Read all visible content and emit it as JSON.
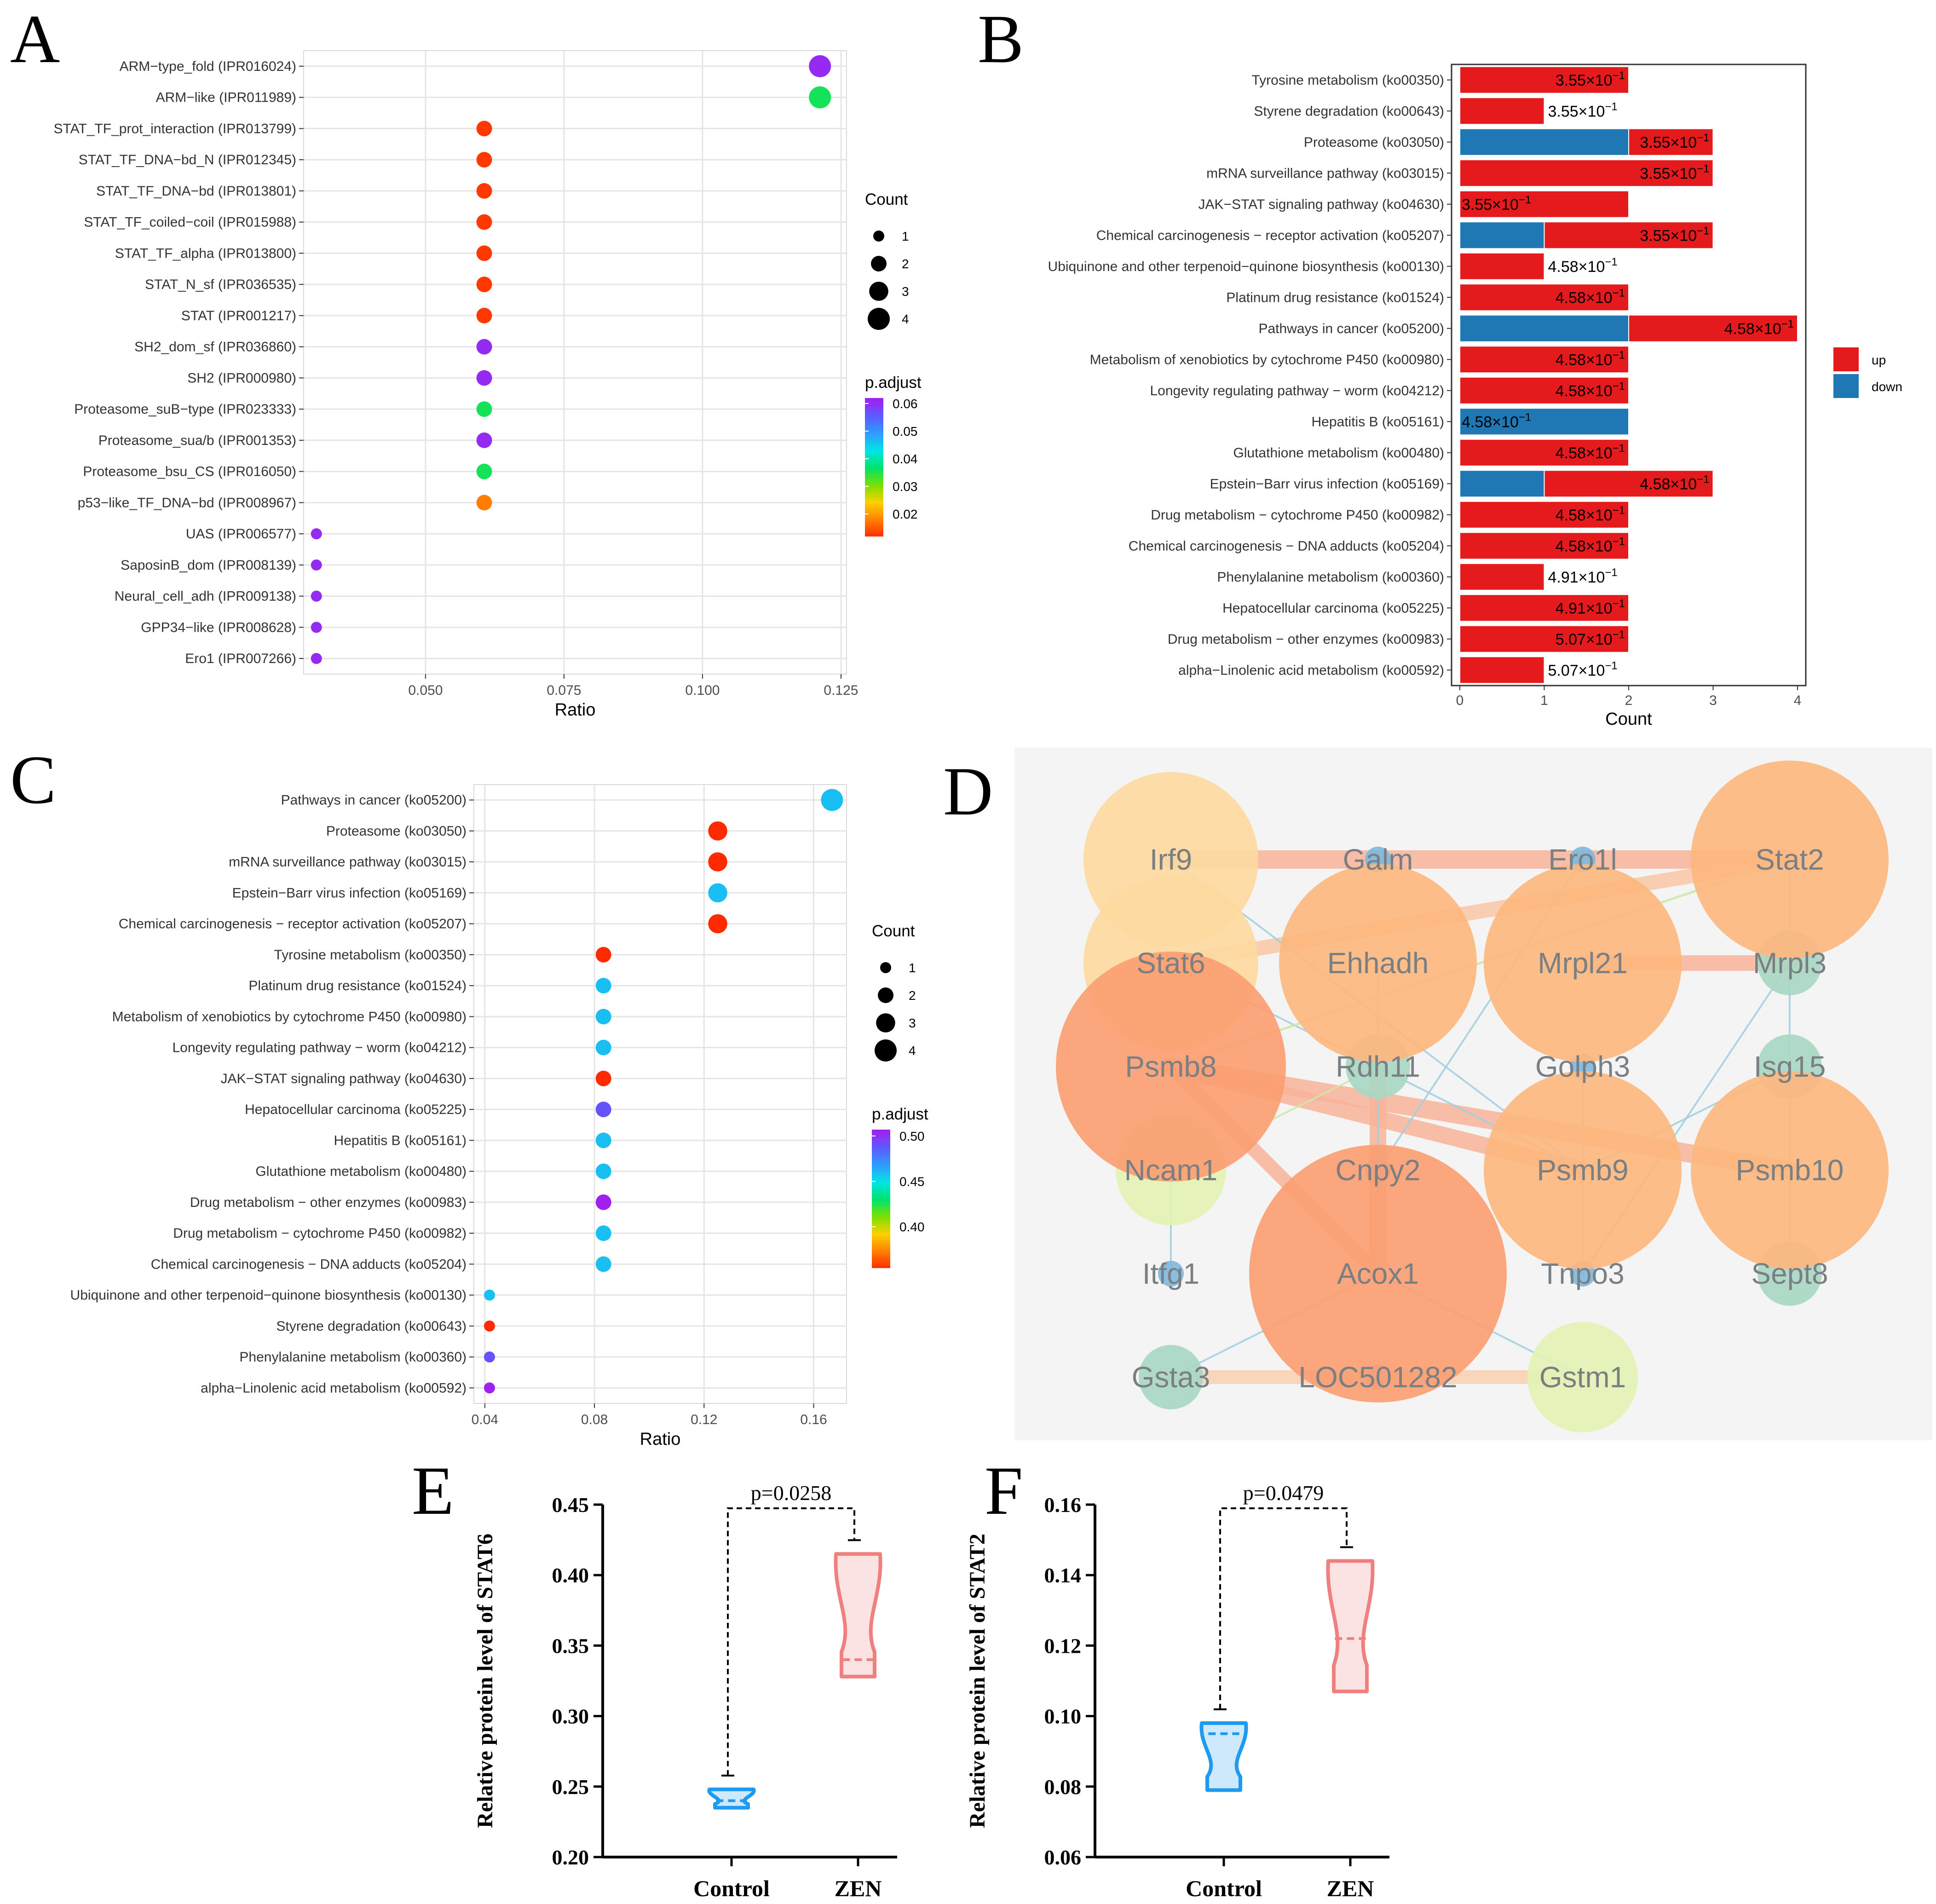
{
  "panel_labels": {
    "A": "A",
    "B": "B",
    "C": "C",
    "D": "D",
    "E": "E",
    "F": "F"
  },
  "colors": {
    "up": "#e41a1c",
    "down": "#1f78b4",
    "highlight": "#ff0000",
    "violin_control": "#1e9bf0",
    "violin_zen": "#f08080"
  },
  "chart_data": [
    {
      "id": "A",
      "type": "scatter",
      "title": "",
      "xlabel": "Ratio",
      "ylabel": "",
      "xlim": [
        0.028,
        0.126
      ],
      "xticks": [
        0.05,
        0.075,
        0.1,
        0.125
      ],
      "xtick_labels": [
        "0.050",
        "0.075",
        "0.100",
        "0.125"
      ],
      "terms": [
        {
          "label": "ARM−type_fold (IPR016024)",
          "ratio": 0.1212,
          "count": 4,
          "padj": 0.061,
          "highlight": false
        },
        {
          "label": "ARM−like (IPR011989)",
          "ratio": 0.1212,
          "count": 4,
          "padj": 0.036,
          "highlight": false
        },
        {
          "label": "STAT_TF_prot_interaction (IPR013799)",
          "ratio": 0.0606,
          "count": 2,
          "padj": 0.013,
          "highlight": true
        },
        {
          "label": "STAT_TF_DNA−bd_N (IPR012345)",
          "ratio": 0.0606,
          "count": 2,
          "padj": 0.013,
          "highlight": true
        },
        {
          "label": "STAT_TF_DNA−bd (IPR013801)",
          "ratio": 0.0606,
          "count": 2,
          "padj": 0.013,
          "highlight": true
        },
        {
          "label": "STAT_TF_coiled−coil (IPR015988)",
          "ratio": 0.0606,
          "count": 2,
          "padj": 0.013,
          "highlight": true
        },
        {
          "label": "STAT_TF_alpha (IPR013800)",
          "ratio": 0.0606,
          "count": 2,
          "padj": 0.013,
          "highlight": true
        },
        {
          "label": "STAT_N_sf (IPR036535)",
          "ratio": 0.0606,
          "count": 2,
          "padj": 0.013,
          "highlight": true
        },
        {
          "label": "STAT (IPR001217)",
          "ratio": 0.0606,
          "count": 2,
          "padj": 0.013,
          "highlight": true
        },
        {
          "label": "SH2_dom_sf (IPR036860)",
          "ratio": 0.0606,
          "count": 2,
          "padj": 0.061,
          "highlight": false
        },
        {
          "label": "SH2 (IPR000980)",
          "ratio": 0.0606,
          "count": 2,
          "padj": 0.061,
          "highlight": false
        },
        {
          "label": "Proteasome_suB−type (IPR023333)",
          "ratio": 0.0606,
          "count": 2,
          "padj": 0.036,
          "highlight": false
        },
        {
          "label": "Proteasome_sua/b (IPR001353)",
          "ratio": 0.0606,
          "count": 2,
          "padj": 0.061,
          "highlight": false
        },
        {
          "label": "Proteasome_bsu_CS (IPR016050)",
          "ratio": 0.0606,
          "count": 2,
          "padj": 0.036,
          "highlight": false
        },
        {
          "label": "p53−like_TF_DNA−bd (IPR008967)",
          "ratio": 0.0606,
          "count": 2,
          "padj": 0.018,
          "highlight": false
        },
        {
          "label": "UAS (IPR006577)",
          "ratio": 0.0303,
          "count": 1,
          "padj": 0.061,
          "highlight": false
        },
        {
          "label": "SaposinB_dom (IPR008139)",
          "ratio": 0.0303,
          "count": 1,
          "padj": 0.061,
          "highlight": false
        },
        {
          "label": "Neural_cell_adh (IPR009138)",
          "ratio": 0.0303,
          "count": 1,
          "padj": 0.061,
          "highlight": false
        },
        {
          "label": "GPP34−like (IPR008628)",
          "ratio": 0.0303,
          "count": 1,
          "padj": 0.061,
          "highlight": false
        },
        {
          "label": "Ero1 (IPR007266)",
          "ratio": 0.0303,
          "count": 1,
          "padj": 0.061,
          "highlight": false
        }
      ],
      "legend_size": {
        "title": "Count",
        "values": [
          1,
          2,
          3,
          4
        ]
      },
      "legend_color": {
        "title": "p.adjust",
        "range": [
          0.012,
          0.062
        ],
        "ticks": [
          0.06,
          0.05,
          0.04,
          0.03,
          0.02
        ],
        "tick_labels": [
          "0.06",
          "0.05",
          "0.04",
          "0.03",
          "0.02"
        ]
      }
    },
    {
      "id": "B",
      "type": "bar",
      "orientation": "horizontal",
      "stacked": true,
      "xlabel": "Count",
      "xlim": [
        0,
        4
      ],
      "xticks": [
        0,
        1,
        2,
        3,
        4
      ],
      "legend": [
        {
          "name": "up",
          "color": "#e41a1c"
        },
        {
          "name": "down",
          "color": "#1f78b4"
        }
      ],
      "categories": [
        "Tyrosine metabolism (ko00350)",
        "Styrene degradation (ko00643)",
        "Proteasome (ko03050)",
        "mRNA surveillance pathway (ko03015)",
        "JAK−STAT signaling pathway (ko04630)",
        "Chemical carcinogenesis − receptor activation (ko05207)",
        "Ubiquinone and other terpenoid−quinone biosynthesis (ko00130)",
        "Platinum drug resistance (ko01524)",
        "Pathways in cancer (ko05200)",
        "Metabolism of xenobiotics by cytochrome P450 (ko00980)",
        "Longevity regulating pathway − worm (ko04212)",
        "Hepatitis B (ko05161)",
        "Glutathione metabolism (ko00480)",
        "Epstein−Barr virus infection (ko05169)",
        "Drug metabolism − cytochrome P450 (ko00982)",
        "Chemical carcinogenesis − DNA adducts (ko05204)",
        "Phenylalanine metabolism (ko00360)",
        "Hepatocellular carcinoma (ko05225)",
        "Drug metabolism − other enzymes (ko00983)",
        "alpha−Linolenic acid metabolism (ko00592)"
      ],
      "highlight": [
        false,
        false,
        false,
        false,
        true,
        false,
        false,
        false,
        false,
        false,
        false,
        false,
        false,
        false,
        false,
        false,
        false,
        false,
        false,
        false
      ],
      "series": [
        {
          "name": "down",
          "values": [
            0,
            0,
            2,
            0,
            0,
            1,
            0,
            0,
            2,
            0,
            0,
            2,
            0,
            1,
            0,
            0,
            0,
            0,
            0,
            0
          ]
        },
        {
          "name": "up",
          "values": [
            2,
            1,
            1,
            3,
            2,
            2,
            1,
            2,
            2,
            2,
            2,
            0,
            2,
            2,
            2,
            2,
            1,
            2,
            2,
            1
          ]
        }
      ],
      "bar_labels": [
        {
          "mant": "3.55",
          "exp": "−1",
          "pos": "in"
        },
        {
          "mant": "3.55",
          "exp": "−1",
          "pos": "out"
        },
        {
          "mant": "3.55",
          "exp": "−1",
          "pos": "in"
        },
        {
          "mant": "3.55",
          "exp": "−1",
          "pos": "in"
        },
        {
          "mant": "3.55",
          "exp": "−1",
          "pos": "left"
        },
        {
          "mant": "3.55",
          "exp": "−1",
          "pos": "in"
        },
        {
          "mant": "4.58",
          "exp": "−1",
          "pos": "out"
        },
        {
          "mant": "4.58",
          "exp": "−1",
          "pos": "in"
        },
        {
          "mant": "4.58",
          "exp": "−1",
          "pos": "in"
        },
        {
          "mant": "4.58",
          "exp": "−1",
          "pos": "in"
        },
        {
          "mant": "4.58",
          "exp": "−1",
          "pos": "in"
        },
        {
          "mant": "4.58",
          "exp": "−1",
          "pos": "left"
        },
        {
          "mant": "4.58",
          "exp": "−1",
          "pos": "in"
        },
        {
          "mant": "4.58",
          "exp": "−1",
          "pos": "in"
        },
        {
          "mant": "4.58",
          "exp": "−1",
          "pos": "in"
        },
        {
          "mant": "4.58",
          "exp": "−1",
          "pos": "in"
        },
        {
          "mant": "4.91",
          "exp": "−1",
          "pos": "out"
        },
        {
          "mant": "4.91",
          "exp": "−1",
          "pos": "in"
        },
        {
          "mant": "5.07",
          "exp": "−1",
          "pos": "in"
        },
        {
          "mant": "5.07",
          "exp": "−1",
          "pos": "out"
        }
      ]
    },
    {
      "id": "C",
      "type": "scatter",
      "xlabel": "Ratio",
      "xlim": [
        0.036,
        0.172
      ],
      "xticks": [
        0.04,
        0.08,
        0.12,
        0.16
      ],
      "xtick_labels": [
        "0.04",
        "0.08",
        "0.12",
        "0.16"
      ],
      "terms": [
        {
          "label": "Pathways in cancer (ko05200)",
          "ratio": 0.1667,
          "count": 4,
          "padj": 0.46,
          "highlight": false
        },
        {
          "label": "Proteasome (ko03050)",
          "ratio": 0.125,
          "count": 3,
          "padj": 0.355,
          "highlight": false
        },
        {
          "label": "mRNA surveillance pathway (ko03015)",
          "ratio": 0.125,
          "count": 3,
          "padj": 0.355,
          "highlight": false
        },
        {
          "label": "Epstein−Barr virus infection (ko05169)",
          "ratio": 0.125,
          "count": 3,
          "padj": 0.46,
          "highlight": false
        },
        {
          "label": "Chemical carcinogenesis − receptor activation (ko05207)",
          "ratio": 0.125,
          "count": 3,
          "padj": 0.355,
          "highlight": false
        },
        {
          "label": "Tyrosine metabolism (ko00350)",
          "ratio": 0.0833,
          "count": 2,
          "padj": 0.355,
          "highlight": false
        },
        {
          "label": "Platinum drug resistance (ko01524)",
          "ratio": 0.0833,
          "count": 2,
          "padj": 0.46,
          "highlight": false
        },
        {
          "label": "Metabolism of xenobiotics by cytochrome P450 (ko00980)",
          "ratio": 0.0833,
          "count": 2,
          "padj": 0.46,
          "highlight": false
        },
        {
          "label": "Longevity regulating pathway − worm (ko04212)",
          "ratio": 0.0833,
          "count": 2,
          "padj": 0.46,
          "highlight": false
        },
        {
          "label": "JAK−STAT signaling pathway (ko04630)",
          "ratio": 0.0833,
          "count": 2,
          "padj": 0.355,
          "highlight": true
        },
        {
          "label": "Hepatocellular carcinoma (ko05225)",
          "ratio": 0.0833,
          "count": 2,
          "padj": 0.491,
          "highlight": false
        },
        {
          "label": "Hepatitis B (ko05161)",
          "ratio": 0.0833,
          "count": 2,
          "padj": 0.46,
          "highlight": false
        },
        {
          "label": "Glutathione metabolism (ko00480)",
          "ratio": 0.0833,
          "count": 2,
          "padj": 0.46,
          "highlight": false
        },
        {
          "label": "Drug metabolism − other enzymes (ko00983)",
          "ratio": 0.0833,
          "count": 2,
          "padj": 0.507,
          "highlight": false
        },
        {
          "label": "Drug metabolism − cytochrome P450 (ko00982)",
          "ratio": 0.0833,
          "count": 2,
          "padj": 0.46,
          "highlight": false
        },
        {
          "label": "Chemical carcinogenesis − DNA adducts (ko05204)",
          "ratio": 0.0833,
          "count": 2,
          "padj": 0.46,
          "highlight": false
        },
        {
          "label": "Ubiquinone and other terpenoid−quinone biosynthesis (ko00130)",
          "ratio": 0.0417,
          "count": 1,
          "padj": 0.46,
          "highlight": false
        },
        {
          "label": "Styrene degradation (ko00643)",
          "ratio": 0.0417,
          "count": 1,
          "padj": 0.355,
          "highlight": false
        },
        {
          "label": "Phenylalanine metabolism (ko00360)",
          "ratio": 0.0417,
          "count": 1,
          "padj": 0.491,
          "highlight": false
        },
        {
          "label": "alpha−Linolenic acid metabolism (ko00592)",
          "ratio": 0.0417,
          "count": 1,
          "padj": 0.507,
          "highlight": false
        }
      ],
      "legend_size": {
        "title": "Count",
        "values": [
          1,
          2,
          3,
          4
        ]
      },
      "legend_color": {
        "title": "p.adjust",
        "range": [
          0.355,
          0.507
        ],
        "ticks": [
          0.5,
          0.45,
          0.4
        ],
        "tick_labels": [
          "0.50",
          "0.45",
          "0.40"
        ]
      }
    },
    {
      "id": "E",
      "type": "violin",
      "ylabel": "Relative protein level of STAT6",
      "ylim": [
        0.2,
        0.45
      ],
      "yticks": [
        0.2,
        0.25,
        0.3,
        0.35,
        0.4,
        0.45
      ],
      "ytick_labels": [
        "0.20",
        "0.25",
        "0.30",
        "0.35",
        "0.40",
        "0.45"
      ],
      "categories": [
        "Control",
        "ZEN"
      ],
      "groups": [
        {
          "name": "Control",
          "min": 0.235,
          "max": 0.248,
          "median": 0.24
        },
        {
          "name": "ZEN",
          "min": 0.328,
          "max": 0.415,
          "median": 0.34
        }
      ],
      "annotation": "p=0.0258"
    },
    {
      "id": "F",
      "type": "violin",
      "ylabel": "Relative protein level of STAT2",
      "ylim": [
        0.06,
        0.16
      ],
      "yticks": [
        0.06,
        0.08,
        0.1,
        0.12,
        0.14,
        0.16
      ],
      "ytick_labels": [
        "0.06",
        "0.08",
        "0.10",
        "0.12",
        "0.14",
        "0.16"
      ],
      "categories": [
        "Control",
        "ZEN"
      ],
      "groups": [
        {
          "name": "Control",
          "min": 0.079,
          "max": 0.098,
          "median": 0.095
        },
        {
          "name": "ZEN",
          "min": 0.107,
          "max": 0.144,
          "median": 0.122
        }
      ],
      "annotation": "p=0.0479"
    }
  ],
  "network": {
    "nodes": [
      {
        "label": "Irf9",
        "color": "#fdd9a0"
      },
      {
        "label": "Galm",
        "color": "#7fb8dd"
      },
      {
        "label": "Ero1l",
        "color": "#7fb8dd"
      },
      {
        "label": "Stat2",
        "color": "#fdb77e"
      },
      {
        "label": "Stat6",
        "color": "#fdd9a0"
      },
      {
        "label": "Ehhadh",
        "color": "#fdb77e"
      },
      {
        "label": "Mrpl21",
        "color": "#fdb77e"
      },
      {
        "label": "Mrpl3",
        "color": "#a9d7c3"
      },
      {
        "label": "Psmb8",
        "color": "#fb9e72"
      },
      {
        "label": "Rdh11",
        "color": "#a9d7c3"
      },
      {
        "label": "Golph3",
        "color": "#7fb8dd"
      },
      {
        "label": "Isg15",
        "color": "#a9d7c3"
      },
      {
        "label": "Ncam1",
        "color": "#e3f2b5"
      },
      {
        "label": "Cnpy2",
        "color": "#7fb8dd"
      },
      {
        "label": "Psmb9",
        "color": "#fdb77e"
      },
      {
        "label": "Psmb10",
        "color": "#fdb77e"
      },
      {
        "label": "Itfg1",
        "color": "#7fb8dd"
      },
      {
        "label": "Acox1",
        "color": "#fb9e72"
      },
      {
        "label": "Tnpo3",
        "color": "#7fb8dd"
      },
      {
        "label": "Sept8",
        "color": "#a9d7c3"
      },
      {
        "label": "Gsta3",
        "color": "#a9d7c3"
      },
      {
        "label": "LOC501282",
        "color": "#7fb8dd"
      },
      {
        "label": "Gstm1",
        "color": "#e3f2b5"
      }
    ]
  }
}
